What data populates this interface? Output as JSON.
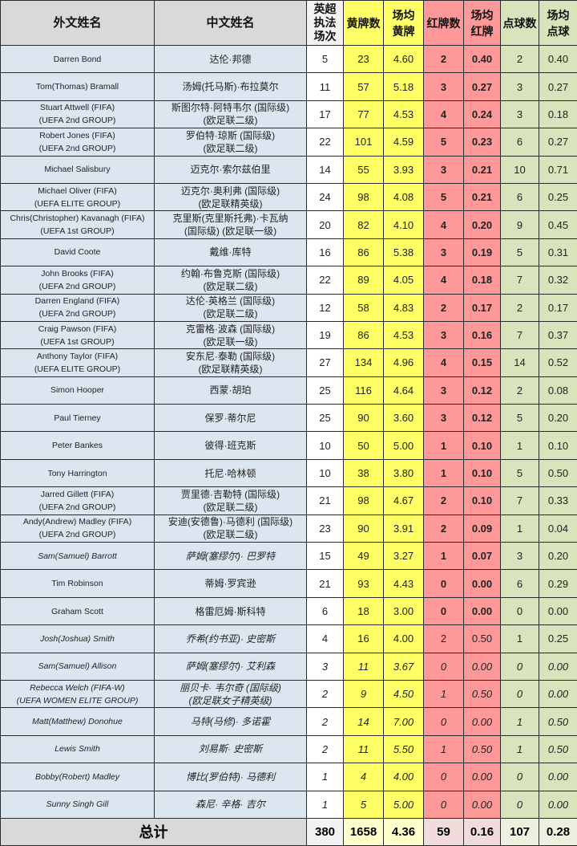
{
  "headers": {
    "foreign_name": "外文姓名",
    "chinese_name": "中文姓名",
    "matches": "英超执法场次",
    "yellow": "黄牌数",
    "yellow_avg": "场均黄牌",
    "red": "红牌数",
    "red_avg": "场均红牌",
    "penalty": "点球数",
    "penalty_avg": "场均点球"
  },
  "colors": {
    "name_bg": "#dce6f1",
    "yellow": "#ffff66",
    "red": "#ff9999",
    "green": "#d8e4bc"
  },
  "rows": [
    {
      "en": [
        "Darren Bond"
      ],
      "cn": [
        "达伦·邦德"
      ],
      "m": "5",
      "y": "23",
      "ya": "4.60",
      "r": "2",
      "ra": "0.40",
      "p": "2",
      "pa": "0.40",
      "style": "bold-red"
    },
    {
      "en": [
        "Tom(Thomas) Bramall"
      ],
      "cn": [
        "汤姆(托马斯)·布拉莫尔"
      ],
      "m": "11",
      "y": "57",
      "ya": "5.18",
      "r": "3",
      "ra": "0.27",
      "p": "3",
      "pa": "0.27",
      "style": "bold-red"
    },
    {
      "en": [
        "Stuart Attwell (FIFA)",
        "(UEFA 2nd GROUP)"
      ],
      "cn": [
        "斯图尔特·阿特韦尔 (国际级)",
        "(欧足联二级)"
      ],
      "m": "17",
      "y": "77",
      "ya": "4.53",
      "r": "4",
      "ra": "0.24",
      "p": "3",
      "pa": "0.18",
      "style": "bold-red"
    },
    {
      "en": [
        "Robert Jones (FIFA)",
        "(UEFA 2nd GROUP)"
      ],
      "cn": [
        "罗伯特·琼斯 (国际级)",
        "(欧足联二级)"
      ],
      "m": "22",
      "y": "101",
      "ya": "4.59",
      "r": "5",
      "ra": "0.23",
      "p": "6",
      "pa": "0.27",
      "style": "bold-red"
    },
    {
      "en": [
        "Michael Salisbury"
      ],
      "cn": [
        "迈克尔·索尔兹伯里"
      ],
      "m": "14",
      "y": "55",
      "ya": "3.93",
      "r": "3",
      "ra": "0.21",
      "p": "10",
      "pa": "0.71",
      "style": "bold-red"
    },
    {
      "en": [
        "Michael Oliver (FIFA)",
        "(UEFA ELITE GROUP)"
      ],
      "cn": [
        "迈克尔·奥利弗 (国际级)",
        "(欧足联精英级)"
      ],
      "m": "24",
      "y": "98",
      "ya": "4.08",
      "r": "5",
      "ra": "0.21",
      "p": "6",
      "pa": "0.25",
      "style": "bold-red"
    },
    {
      "en": [
        "Chris(Christopher) Kavanagh (FIFA)",
        "(UEFA 1st GROUP)"
      ],
      "cn": [
        "克里斯(克里斯托弗)·卡瓦纳",
        "(国际级) (欧足联一级)"
      ],
      "m": "20",
      "y": "82",
      "ya": "4.10",
      "r": "4",
      "ra": "0.20",
      "p": "9",
      "pa": "0.45",
      "style": "bold-red"
    },
    {
      "en": [
        "David Coote"
      ],
      "cn": [
        "戴维·库特"
      ],
      "m": "16",
      "y": "86",
      "ya": "5.38",
      "r": "3",
      "ra": "0.19",
      "p": "5",
      "pa": "0.31",
      "style": "bold-red"
    },
    {
      "en": [
        "John Brooks (FIFA)",
        "(UEFA 2nd GROUP)"
      ],
      "cn": [
        "约翰·布鲁克斯 (国际级)",
        "(欧足联二级)"
      ],
      "m": "22",
      "y": "89",
      "ya": "4.05",
      "r": "4",
      "ra": "0.18",
      "p": "7",
      "pa": "0.32",
      "style": "bold-red"
    },
    {
      "en": [
        "Darren England (FIFA)",
        "(UEFA 2nd GROUP)"
      ],
      "cn": [
        "达伦·英格兰 (国际级)",
        "(欧足联二级)"
      ],
      "m": "12",
      "y": "58",
      "ya": "4.83",
      "r": "2",
      "ra": "0.17",
      "p": "2",
      "pa": "0.17",
      "style": "bold-red"
    },
    {
      "en": [
        "Craig Pawson (FIFA)",
        "(UEFA 1st GROUP)"
      ],
      "cn": [
        "克雷格·波森 (国际级)",
        "(欧足联一级)"
      ],
      "m": "19",
      "y": "86",
      "ya": "4.53",
      "r": "3",
      "ra": "0.16",
      "p": "7",
      "pa": "0.37",
      "style": "bold-red"
    },
    {
      "en": [
        "Anthony Taylor (FIFA)",
        "(UEFA ELITE GROUP)"
      ],
      "cn": [
        "安东尼·泰勒 (国际级)",
        "(欧足联精英级)"
      ],
      "m": "27",
      "y": "134",
      "ya": "4.96",
      "r": "4",
      "ra": "0.15",
      "p": "14",
      "pa": "0.52",
      "style": "bold-red"
    },
    {
      "en": [
        "Simon Hooper"
      ],
      "cn": [
        "西蒙·胡珀"
      ],
      "m": "25",
      "y": "116",
      "ya": "4.64",
      "r": "3",
      "ra": "0.12",
      "p": "2",
      "pa": "0.08",
      "style": "bold-red"
    },
    {
      "en": [
        "Paul Tierney"
      ],
      "cn": [
        "保罗·蒂尔尼"
      ],
      "m": "25",
      "y": "90",
      "ya": "3.60",
      "r": "3",
      "ra": "0.12",
      "p": "5",
      "pa": "0.20",
      "style": "bold-red"
    },
    {
      "en": [
        "Peter Bankes"
      ],
      "cn": [
        "彼得·班克斯"
      ],
      "m": "10",
      "y": "50",
      "ya": "5.00",
      "r": "1",
      "ra": "0.10",
      "p": "1",
      "pa": "0.10",
      "style": "bold-red"
    },
    {
      "en": [
        "Tony Harrington"
      ],
      "cn": [
        "托尼·哈林顿"
      ],
      "m": "10",
      "y": "38",
      "ya": "3.80",
      "r": "1",
      "ra": "0.10",
      "p": "5",
      "pa": "0.50",
      "style": "bold-red"
    },
    {
      "en": [
        "Jarred Gillett (FIFA)",
        "(UEFA 2nd GROUP)"
      ],
      "cn": [
        "贾里德·吉勒特 (国际级)",
        "(欧足联二级)"
      ],
      "m": "21",
      "y": "98",
      "ya": "4.67",
      "r": "2",
      "ra": "0.10",
      "p": "7",
      "pa": "0.33",
      "style": "bold-red"
    },
    {
      "en": [
        "Andy(Andrew) Madley (FIFA)",
        "(UEFA 2nd GROUP)"
      ],
      "cn": [
        "安迪(安德鲁)·马德利 (国际级)",
        "(欧足联二级)"
      ],
      "m": "23",
      "y": "90",
      "ya": "3.91",
      "r": "2",
      "ra": "0.09",
      "p": "1",
      "pa": "0.04",
      "style": "bold-red"
    },
    {
      "en": [
        "Sam(Samuel) Barrott"
      ],
      "cn": [
        "萨姆(塞缪尔)· 巴罗特"
      ],
      "m": "15",
      "y": "49",
      "ya": "3.27",
      "r": "1",
      "ra": "0.07",
      "p": "3",
      "pa": "0.20",
      "style": "italic-name-bold-red"
    },
    {
      "en": [
        "Tim Robinson"
      ],
      "cn": [
        "蒂姆·罗宾逊"
      ],
      "m": "21",
      "y": "93",
      "ya": "4.43",
      "r": "0",
      "ra": "0.00",
      "p": "6",
      "pa": "0.29",
      "style": "bold-red"
    },
    {
      "en": [
        "Graham Scott"
      ],
      "cn": [
        "格雷厄姆·斯科特"
      ],
      "m": "6",
      "y": "18",
      "ya": "3.00",
      "r": "0",
      "ra": "0.00",
      "p": "0",
      "pa": "0.00",
      "style": "bold-red"
    },
    {
      "en": [
        "Josh(Joshua) Smith"
      ],
      "cn": [
        "乔希(约书亚)· 史密斯"
      ],
      "m": "4",
      "y": "16",
      "ya": "4.00",
      "r": "2",
      "ra": "0.50",
      "p": "1",
      "pa": "0.25",
      "style": "italic-name"
    },
    {
      "en": [
        "Sam(Samuel) Allison"
      ],
      "cn": [
        "萨姆(塞缪尔)· 艾利森"
      ],
      "m": "3",
      "y": "11",
      "ya": "3.67",
      "r": "0",
      "ra": "0.00",
      "p": "0",
      "pa": "0.00",
      "style": "italic-all"
    },
    {
      "en": [
        "Rebecca Welch (FIFA-W)",
        "(UEFA WOMEN ELITE GROUP)"
      ],
      "cn": [
        "丽贝卡· 韦尔奇 (国际级)",
        "(欧足联女子精英级)"
      ],
      "m": "2",
      "y": "9",
      "ya": "4.50",
      "r": "1",
      "ra": "0.50",
      "p": "0",
      "pa": "0.00",
      "style": "italic-all"
    },
    {
      "en": [
        "Matt(Matthew) Donohue"
      ],
      "cn": [
        "马特(马修)· 多诺霍"
      ],
      "m": "2",
      "y": "14",
      "ya": "7.00",
      "r": "0",
      "ra": "0.00",
      "p": "1",
      "pa": "0.50",
      "style": "italic-all"
    },
    {
      "en": [
        "Lewis Smith"
      ],
      "cn": [
        "刘易斯· 史密斯"
      ],
      "m": "2",
      "y": "11",
      "ya": "5.50",
      "r": "1",
      "ra": "0.50",
      "p": "1",
      "pa": "0.50",
      "style": "italic-all"
    },
    {
      "en": [
        "Bobby(Robert) Madley"
      ],
      "cn": [
        "博比(罗伯特)· 马德利"
      ],
      "m": "1",
      "y": "4",
      "ya": "4.00",
      "r": "0",
      "ra": "0.00",
      "p": "0",
      "pa": "0.00",
      "style": "italic-all"
    },
    {
      "en": [
        "Sunny Singh Gill"
      ],
      "cn": [
        "森尼· 辛格· 吉尔"
      ],
      "m": "1",
      "y": "5",
      "ya": "5.00",
      "r": "0",
      "ra": "0.00",
      "p": "0",
      "pa": "0.00",
      "style": "italic-all"
    }
  ],
  "total": {
    "label": "总计",
    "m": "380",
    "y": "1658",
    "ya": "4.36",
    "r": "59",
    "ra": "0.16",
    "p": "107",
    "pa": "0.28"
  }
}
